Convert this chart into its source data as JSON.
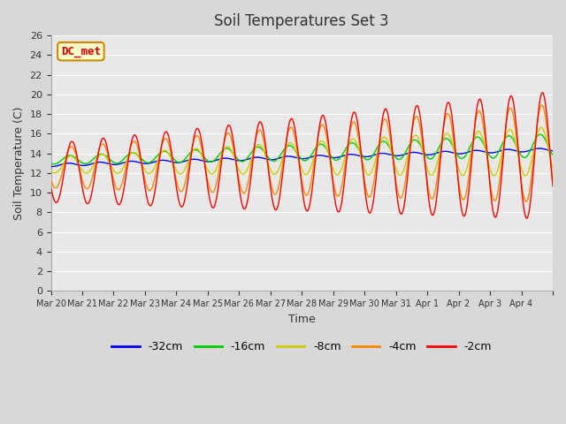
{
  "title": "Soil Temperatures Set 3",
  "xlabel": "Time",
  "ylabel": "Soil Temperature (C)",
  "ylim": [
    0,
    26
  ],
  "yticks": [
    0,
    2,
    4,
    6,
    8,
    10,
    12,
    14,
    16,
    18,
    20,
    22,
    24,
    26
  ],
  "annotation_text": "DC_met",
  "annotation_bg": "#ffffcc",
  "annotation_border": "#cc8800",
  "annotation_text_color": "#cc0000",
  "colors": {
    "-32cm": "#0000ff",
    "-16cm": "#00cc00",
    "-8cm": "#cccc00",
    "-4cm": "#ff8800",
    "-2cm": "#ff0000"
  },
  "legend_labels": [
    "-32cm",
    "-16cm",
    "-8cm",
    "-4cm",
    "-2cm"
  ],
  "x_tick_labels": [
    "Mar 20",
    "Mar 21",
    "Mar 22",
    "Mar 23",
    "Mar 24",
    "Mar 25",
    "Mar 26",
    "Mar 27",
    "Mar 28",
    "Mar 29",
    "Mar 30",
    "Mar 31",
    "Apr 1",
    "Apr 2",
    "Apr 3",
    "Apr 4"
  ],
  "background_color": "#e8e8e8",
  "plot_bg": "#e8e8e8",
  "n_days": 16
}
